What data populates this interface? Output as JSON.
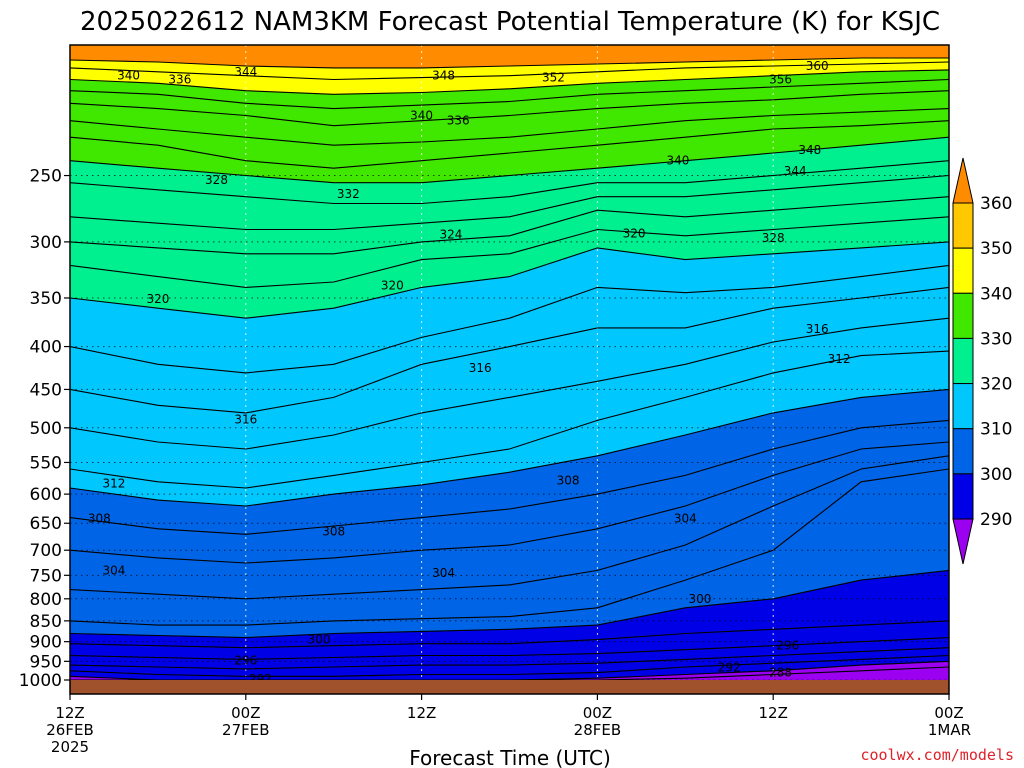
{
  "chart_data": {
    "type": "area",
    "title": "2025022612 NAM3KM Forecast Potential Temperature (K) for KSJC",
    "xlabel": "Forecast Time (UTC)",
    "ylabel": "",
    "credit": "coolwx.com/models",
    "credit_color": "#e0202a",
    "y_scale": "log-pressure",
    "ylim": [
      1000,
      180
    ],
    "xlim": [
      0,
      60
    ],
    "x_ticks": [
      {
        "h": 0,
        "lines": [
          "12Z",
          "26FEB",
          "2025"
        ]
      },
      {
        "h": 12,
        "lines": [
          "00Z",
          "27FEB"
        ]
      },
      {
        "h": 24,
        "lines": [
          "12Z"
        ]
      },
      {
        "h": 36,
        "lines": [
          "00Z",
          "28FEB"
        ]
      },
      {
        "h": 48,
        "lines": [
          "12Z"
        ]
      },
      {
        "h": 60,
        "lines": [
          "00Z",
          "1MAR"
        ]
      }
    ],
    "y_ticks": [
      250,
      300,
      350,
      400,
      450,
      500,
      550,
      600,
      650,
      700,
      750,
      800,
      850,
      900,
      950,
      1000
    ],
    "colorbar": {
      "levels": [
        290,
        300,
        310,
        320,
        330,
        340,
        350,
        360
      ],
      "colors": [
        "#9c00f0",
        "#0000e6",
        "#0064e6",
        "#00c8ff",
        "#00f090",
        "#40e800",
        "#ffff00",
        "#ffc800",
        "#ff8c00"
      ],
      "extend": "both"
    },
    "ground_color": "#a0522d",
    "contour_interval": 2,
    "x": [
      0,
      6,
      12,
      18,
      24,
      30,
      36,
      42,
      48,
      54,
      60
    ],
    "series": [
      {
        "label": "288",
        "pressures": [
          1000,
          1000,
          1000,
          1000,
          1000,
          1000,
          1000,
          995,
          985,
          975,
          965
        ]
      },
      {
        "label": "290",
        "pressures": [
          990,
          1000,
          1000,
          1000,
          1000,
          1000,
          995,
          985,
          975,
          960,
          950
        ]
      },
      {
        "label": "292",
        "pressures": [
          975,
          985,
          990,
          990,
          985,
          985,
          980,
          965,
          955,
          945,
          935
        ]
      },
      {
        "label": "294",
        "pressures": [
          960,
          965,
          970,
          965,
          960,
          960,
          955,
          945,
          935,
          925,
          915
        ]
      },
      {
        "label": "296",
        "pressures": [
          935,
          940,
          945,
          940,
          935,
          935,
          930,
          920,
          910,
          900,
          890
        ]
      },
      {
        "label": "298",
        "pressures": [
          905,
          910,
          915,
          910,
          905,
          905,
          895,
          880,
          870,
          860,
          850
        ]
      },
      {
        "label": "300",
        "pressures": [
          880,
          885,
          890,
          880,
          875,
          870,
          860,
          820,
          800,
          760,
          740
        ]
      },
      {
        "label": "302",
        "pressures": [
          850,
          860,
          860,
          850,
          845,
          840,
          820,
          760,
          700,
          580,
          560
        ]
      },
      {
        "label": "304",
        "pressures": [
          780,
          790,
          800,
          790,
          780,
          770,
          740,
          690,
          620,
          560,
          540
        ]
      },
      {
        "label": "306",
        "pressures": [
          700,
          715,
          725,
          715,
          700,
          690,
          660,
          620,
          570,
          530,
          520
        ]
      },
      {
        "label": "308",
        "pressures": [
          640,
          660,
          670,
          655,
          640,
          625,
          600,
          570,
          530,
          500,
          490
        ]
      },
      {
        "label": "310",
        "pressures": [
          590,
          610,
          620,
          600,
          585,
          565,
          540,
          510,
          480,
          460,
          450
        ]
      },
      {
        "label": "312",
        "pressures": [
          560,
          580,
          590,
          570,
          550,
          530,
          490,
          460,
          430,
          410,
          405
        ]
      },
      {
        "label": "314",
        "pressures": [
          500,
          520,
          530,
          510,
          480,
          460,
          440,
          420,
          395,
          380,
          370
        ]
      },
      {
        "label": "316",
        "pressures": [
          450,
          470,
          480,
          460,
          420,
          400,
          380,
          380,
          360,
          350,
          340
        ]
      },
      {
        "label": "318",
        "pressures": [
          400,
          420,
          430,
          420,
          390,
          370,
          340,
          345,
          340,
          330,
          320
        ]
      },
      {
        "label": "320",
        "pressures": [
          350,
          360,
          370,
          360,
          340,
          330,
          305,
          315,
          310,
          305,
          300
        ]
      },
      {
        "label": "322",
        "pressures": [
          320,
          330,
          340,
          335,
          315,
          310,
          290,
          295,
          290,
          285,
          280
        ]
      },
      {
        "label": "324",
        "pressures": [
          300,
          305,
          310,
          310,
          300,
          295,
          275,
          280,
          275,
          270,
          265
        ]
      },
      {
        "label": "326",
        "pressures": [
          280,
          285,
          290,
          290,
          285,
          280,
          265,
          265,
          260,
          255,
          250
        ]
      },
      {
        "label": "328",
        "pressures": [
          255,
          260,
          265,
          270,
          270,
          265,
          255,
          255,
          250,
          245,
          240
        ]
      },
      {
        "label": "330",
        "pressures": [
          240,
          245,
          250,
          255,
          255,
          250,
          245,
          240,
          235,
          230,
          225
        ]
      },
      {
        "label": "332",
        "pressures": [
          225,
          230,
          240,
          245,
          240,
          235,
          230,
          225,
          220,
          218,
          215
        ]
      },
      {
        "label": "334",
        "pressures": [
          215,
          220,
          225,
          230,
          228,
          225,
          220,
          215,
          212,
          210,
          208
        ]
      },
      {
        "label": "336",
        "pressures": [
          205,
          208,
          212,
          218,
          215,
          212,
          208,
          205,
          203,
          200,
          198
        ]
      },
      {
        "label": "338",
        "pressures": [
          198,
          200,
          205,
          208,
          206,
          204,
          200,
          198,
          196,
          194,
          192
        ]
      },
      {
        "label": "340",
        "pressures": [
          192,
          194,
          198,
          200,
          199,
          197,
          194,
          192,
          190,
          188,
          187
        ]
      },
      {
        "label": "344",
        "pressures": [
          186,
          188,
          190,
          192,
          191,
          190,
          188,
          186,
          185,
          184,
          183
        ]
      },
      {
        "label": "348",
        "pressures": [
          182,
          183,
          185,
          186,
          186,
          185,
          184,
          183,
          182,
          181,
          181
        ]
      }
    ],
    "labels": [
      {
        "text": "340",
        "h": 4,
        "p": 190
      },
      {
        "text": "336",
        "h": 7.5,
        "p": 192
      },
      {
        "text": "344",
        "h": 12,
        "p": 188
      },
      {
        "text": "348",
        "h": 25.5,
        "p": 190
      },
      {
        "text": "352",
        "h": 33,
        "p": 191
      },
      {
        "text": "360",
        "h": 51,
        "p": 185
      },
      {
        "text": "356",
        "h": 48.5,
        "p": 192
      },
      {
        "text": "340",
        "h": 24,
        "p": 212
      },
      {
        "text": "336",
        "h": 26.5,
        "p": 215
      },
      {
        "text": "328",
        "h": 10,
        "p": 253
      },
      {
        "text": "332",
        "h": 19,
        "p": 263
      },
      {
        "text": "340",
        "h": 41.5,
        "p": 240
      },
      {
        "text": "348",
        "h": 50.5,
        "p": 233
      },
      {
        "text": "344",
        "h": 49.5,
        "p": 247
      },
      {
        "text": "324",
        "h": 26,
        "p": 294
      },
      {
        "text": "320",
        "h": 38.5,
        "p": 293
      },
      {
        "text": "328",
        "h": 48,
        "p": 297
      },
      {
        "text": "320",
        "h": 22,
        "p": 338
      },
      {
        "text": "320",
        "h": 6,
        "p": 351
      },
      {
        "text": "316",
        "h": 51,
        "p": 381
      },
      {
        "text": "312",
        "h": 52.5,
        "p": 414
      },
      {
        "text": "316",
        "h": 28,
        "p": 424
      },
      {
        "text": "316",
        "h": 12,
        "p": 489
      },
      {
        "text": "308",
        "h": 34,
        "p": 578
      },
      {
        "text": "312",
        "h": 3,
        "p": 583
      },
      {
        "text": "304",
        "h": 42,
        "p": 642
      },
      {
        "text": "308",
        "h": 2,
        "p": 642
      },
      {
        "text": "308",
        "h": 18,
        "p": 665
      },
      {
        "text": "304",
        "h": 3,
        "p": 740
      },
      {
        "text": "304",
        "h": 25.5,
        "p": 745
      },
      {
        "text": "300",
        "h": 43,
        "p": 800
      },
      {
        "text": "300",
        "h": 17,
        "p": 895
      },
      {
        "text": "296",
        "h": 49,
        "p": 910
      },
      {
        "text": "296",
        "h": 12,
        "p": 948
      },
      {
        "text": "292",
        "h": 45,
        "p": 966
      },
      {
        "text": "288",
        "h": 48.5,
        "p": 980
      },
      {
        "text": "292",
        "h": 13,
        "p": 997
      }
    ]
  }
}
